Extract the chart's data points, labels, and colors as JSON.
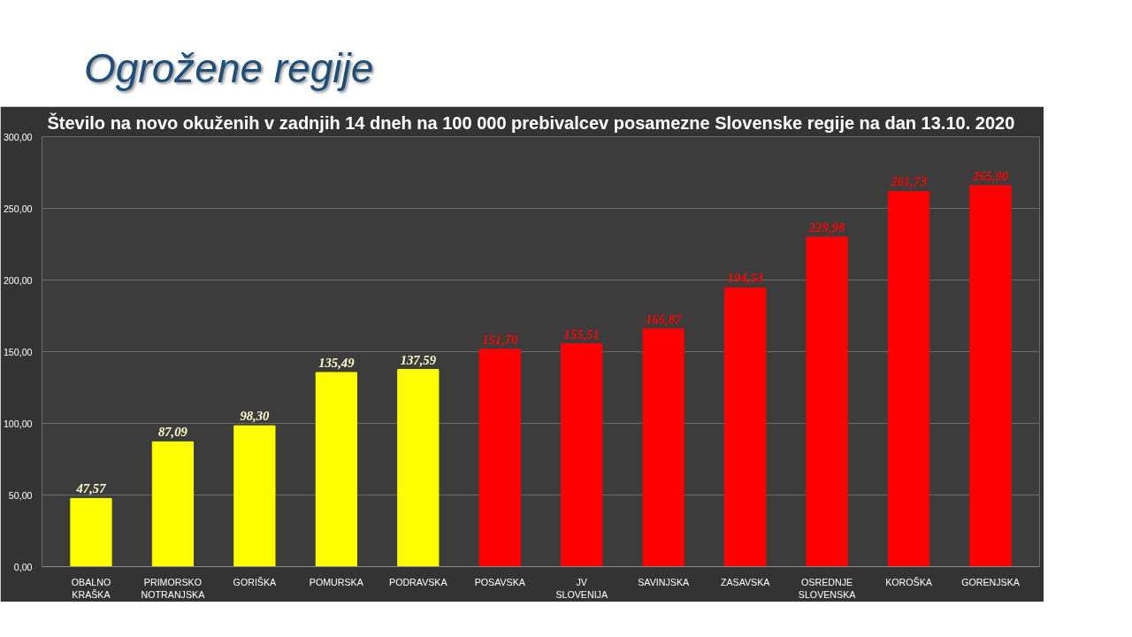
{
  "chart_data": {
    "type": "bar",
    "title": "Ogrožene regije",
    "subtitle": "Število na novo okuženih  v zadnjih  14 dneh na 100 000 prebivalcev  posamezne Slovenske  regije na dan 13.10. 2020",
    "categories": [
      "OBALNO KRAŠKA",
      "PRIMORSKO NOTRANJSKA",
      "GORIŠKA",
      "POMURSKA",
      "PODRAVSKA",
      "POSAVSKA",
      "JV SLOVENIJA",
      "SAVINJSKA",
      "ZASAVSKA",
      "OSREDNJE SLOVENSKA",
      "KOROŠKA",
      "GORENJSKA"
    ],
    "values": [
      47.57,
      87.09,
      98.3,
      135.49,
      137.59,
      151.7,
      155.51,
      165.87,
      194.54,
      229.98,
      261.73,
      265.9
    ],
    "colors": [
      "#ffff00",
      "#ffff00",
      "#ffff00",
      "#ffff00",
      "#ffff00",
      "#ff0000",
      "#ff0000",
      "#ff0000",
      "#ff0000",
      "#ff0000",
      "#ff0000",
      "#ff0000"
    ],
    "value_labels": [
      "47,57",
      "87,09",
      "98,30",
      "135,49",
      "137,59",
      "151,70",
      "155,51",
      "165,87",
      "194,54",
      "229,98",
      "261,73",
      "265,90"
    ],
    "ylim": [
      0,
      300
    ],
    "yticks": [
      {
        "value": 0,
        "label": "0,00"
      },
      {
        "value": 50,
        "label": "50,00"
      },
      {
        "value": 100,
        "label": "100,00"
      },
      {
        "value": 150,
        "label": "150,00"
      },
      {
        "value": 200,
        "label": "200,00"
      },
      {
        "value": 250,
        "label": "250,00"
      },
      {
        "value": 300,
        "label": "300,00"
      }
    ],
    "grid": "y"
  }
}
